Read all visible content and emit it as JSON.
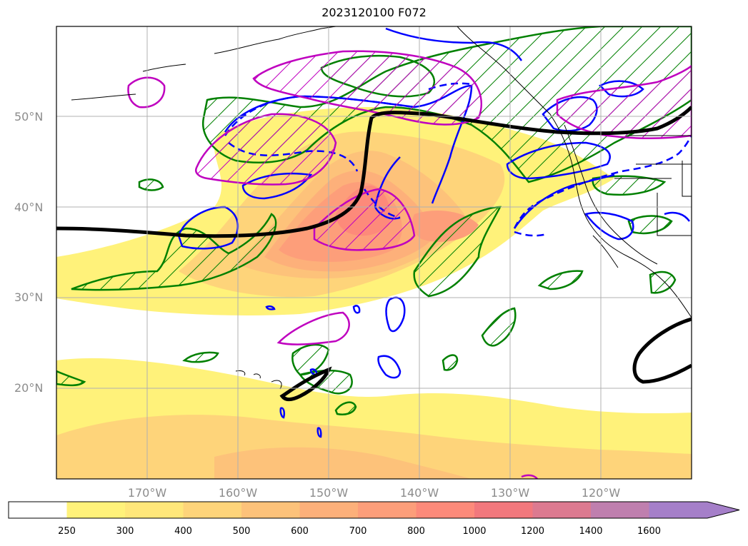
{
  "title": "2023120100 F072",
  "lat_labels": [
    {
      "text": "50°N",
      "lat": 50
    },
    {
      "text": "40°N",
      "lat": 40
    },
    {
      "text": "30°N",
      "lat": 30
    },
    {
      "text": "20°N",
      "lat": 20
    }
  ],
  "lon_labels": [
    {
      "text": "170°W",
      "lon": -170
    },
    {
      "text": "160°W",
      "lon": -160
    },
    {
      "text": "150°W",
      "lon": -150
    },
    {
      "text": "140°W",
      "lon": -140
    },
    {
      "text": "130°W",
      "lon": -130
    },
    {
      "text": "120°W",
      "lon": -120
    }
  ],
  "map_extent": {
    "lon_min": -180,
    "lon_max": -110,
    "lat_min": 10,
    "lat_max": 60
  },
  "colorbar": {
    "levels": [
      "250",
      "300",
      "400",
      "500",
      "600",
      "700",
      "800",
      "1000",
      "1200",
      "1400",
      "1600"
    ],
    "colors": [
      "#fff27a",
      "#ffe77a",
      "#fed47a",
      "#fdc27a",
      "#fdb07a",
      "#fd9e7a",
      "#fd8a7a",
      "#f2787d",
      "#dc7a90",
      "#bf7fae",
      "#a57fc9"
    ],
    "extend": "max"
  },
  "colors": {
    "filled_contours": "#fff27a",
    "green_contour": "#008000",
    "blue_contour": "#0000ff",
    "magenta_contour": "#bf00bf",
    "black_contour": "#000000",
    "coastline": "#000000",
    "grid": "#b0b0b0"
  }
}
